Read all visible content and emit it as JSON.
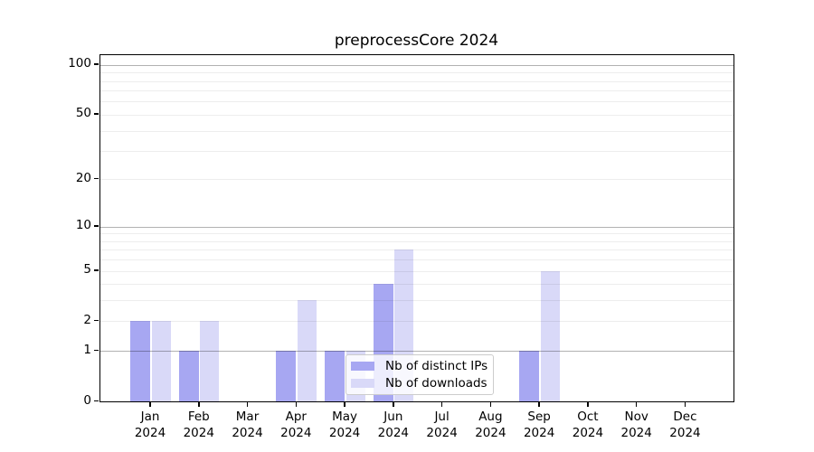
{
  "title": "preprocessCore 2024",
  "legend": {
    "items": [
      {
        "label": "Nb of distinct IPs",
        "color": "#a7a7f2"
      },
      {
        "label": "Nb of downloads",
        "color": "#d9d9f8"
      }
    ]
  },
  "axes": {
    "ytick_labels": [
      "0",
      "1",
      "2",
      "5",
      "10",
      "20",
      "50",
      "100"
    ],
    "year_label": "2024"
  },
  "chart_data": {
    "type": "bar",
    "title": "preprocessCore 2024",
    "categories": [
      "Jan",
      "Feb",
      "Mar",
      "Apr",
      "May",
      "Jun",
      "Jul",
      "Aug",
      "Sep",
      "Oct",
      "Nov",
      "Dec"
    ],
    "year": "2024",
    "series": [
      {
        "name": "Nb of distinct IPs",
        "color": "#a7a7f2",
        "values": [
          2,
          1,
          0,
          1,
          1,
          4,
          0,
          0,
          1,
          0,
          0,
          0
        ]
      },
      {
        "name": "Nb of downloads",
        "color": "#d9d9f8",
        "values": [
          2,
          2,
          0,
          3,
          1,
          7,
          0,
          0,
          5,
          0,
          0,
          0
        ]
      }
    ],
    "yscale": "log1p",
    "yticks": [
      0,
      1,
      2,
      5,
      10,
      20,
      50,
      100
    ],
    "major_gridlines": [
      1,
      10,
      100
    ],
    "minor_gridlines": [
      2,
      3,
      4,
      5,
      6,
      7,
      8,
      9,
      20,
      30,
      40,
      50,
      60,
      70,
      80,
      90
    ],
    "ylim": [
      0,
      115
    ],
    "grid": true,
    "legend_position": "lower center-right"
  }
}
